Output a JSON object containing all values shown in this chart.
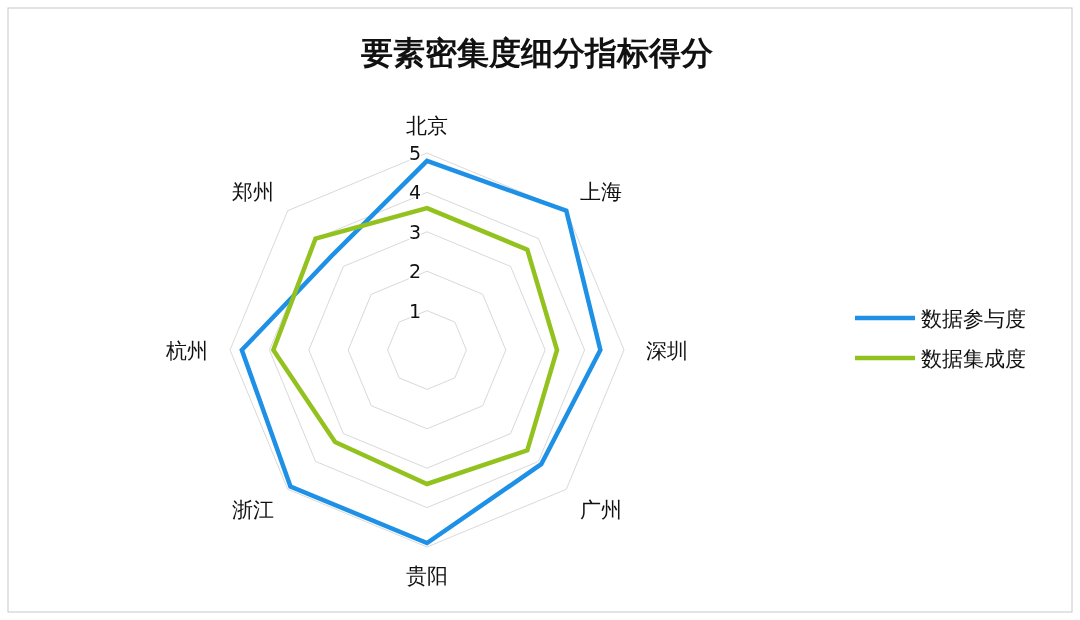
{
  "chart_data": {
    "type": "radar",
    "title": "要素密集度细分指标得分",
    "categories": [
      "北京",
      "上海",
      "深圳",
      "广州",
      "贵阳",
      "浙江",
      "杭州",
      "郑州"
    ],
    "ylim": [
      0,
      5
    ],
    "yticks": [
      1,
      2,
      3,
      4,
      5
    ],
    "grid": true,
    "legend": "right",
    "series": [
      {
        "name": "数据参与度",
        "color": "#1e90e6",
        "values": [
          4.8,
          5.0,
          4.4,
          4.1,
          4.9,
          4.9,
          4.7,
          3.4
        ]
      },
      {
        "name": "数据集成度",
        "color": "#93c21f",
        "values": [
          3.6,
          3.6,
          3.3,
          3.6,
          3.4,
          3.3,
          3.9,
          4.0
        ]
      }
    ]
  }
}
